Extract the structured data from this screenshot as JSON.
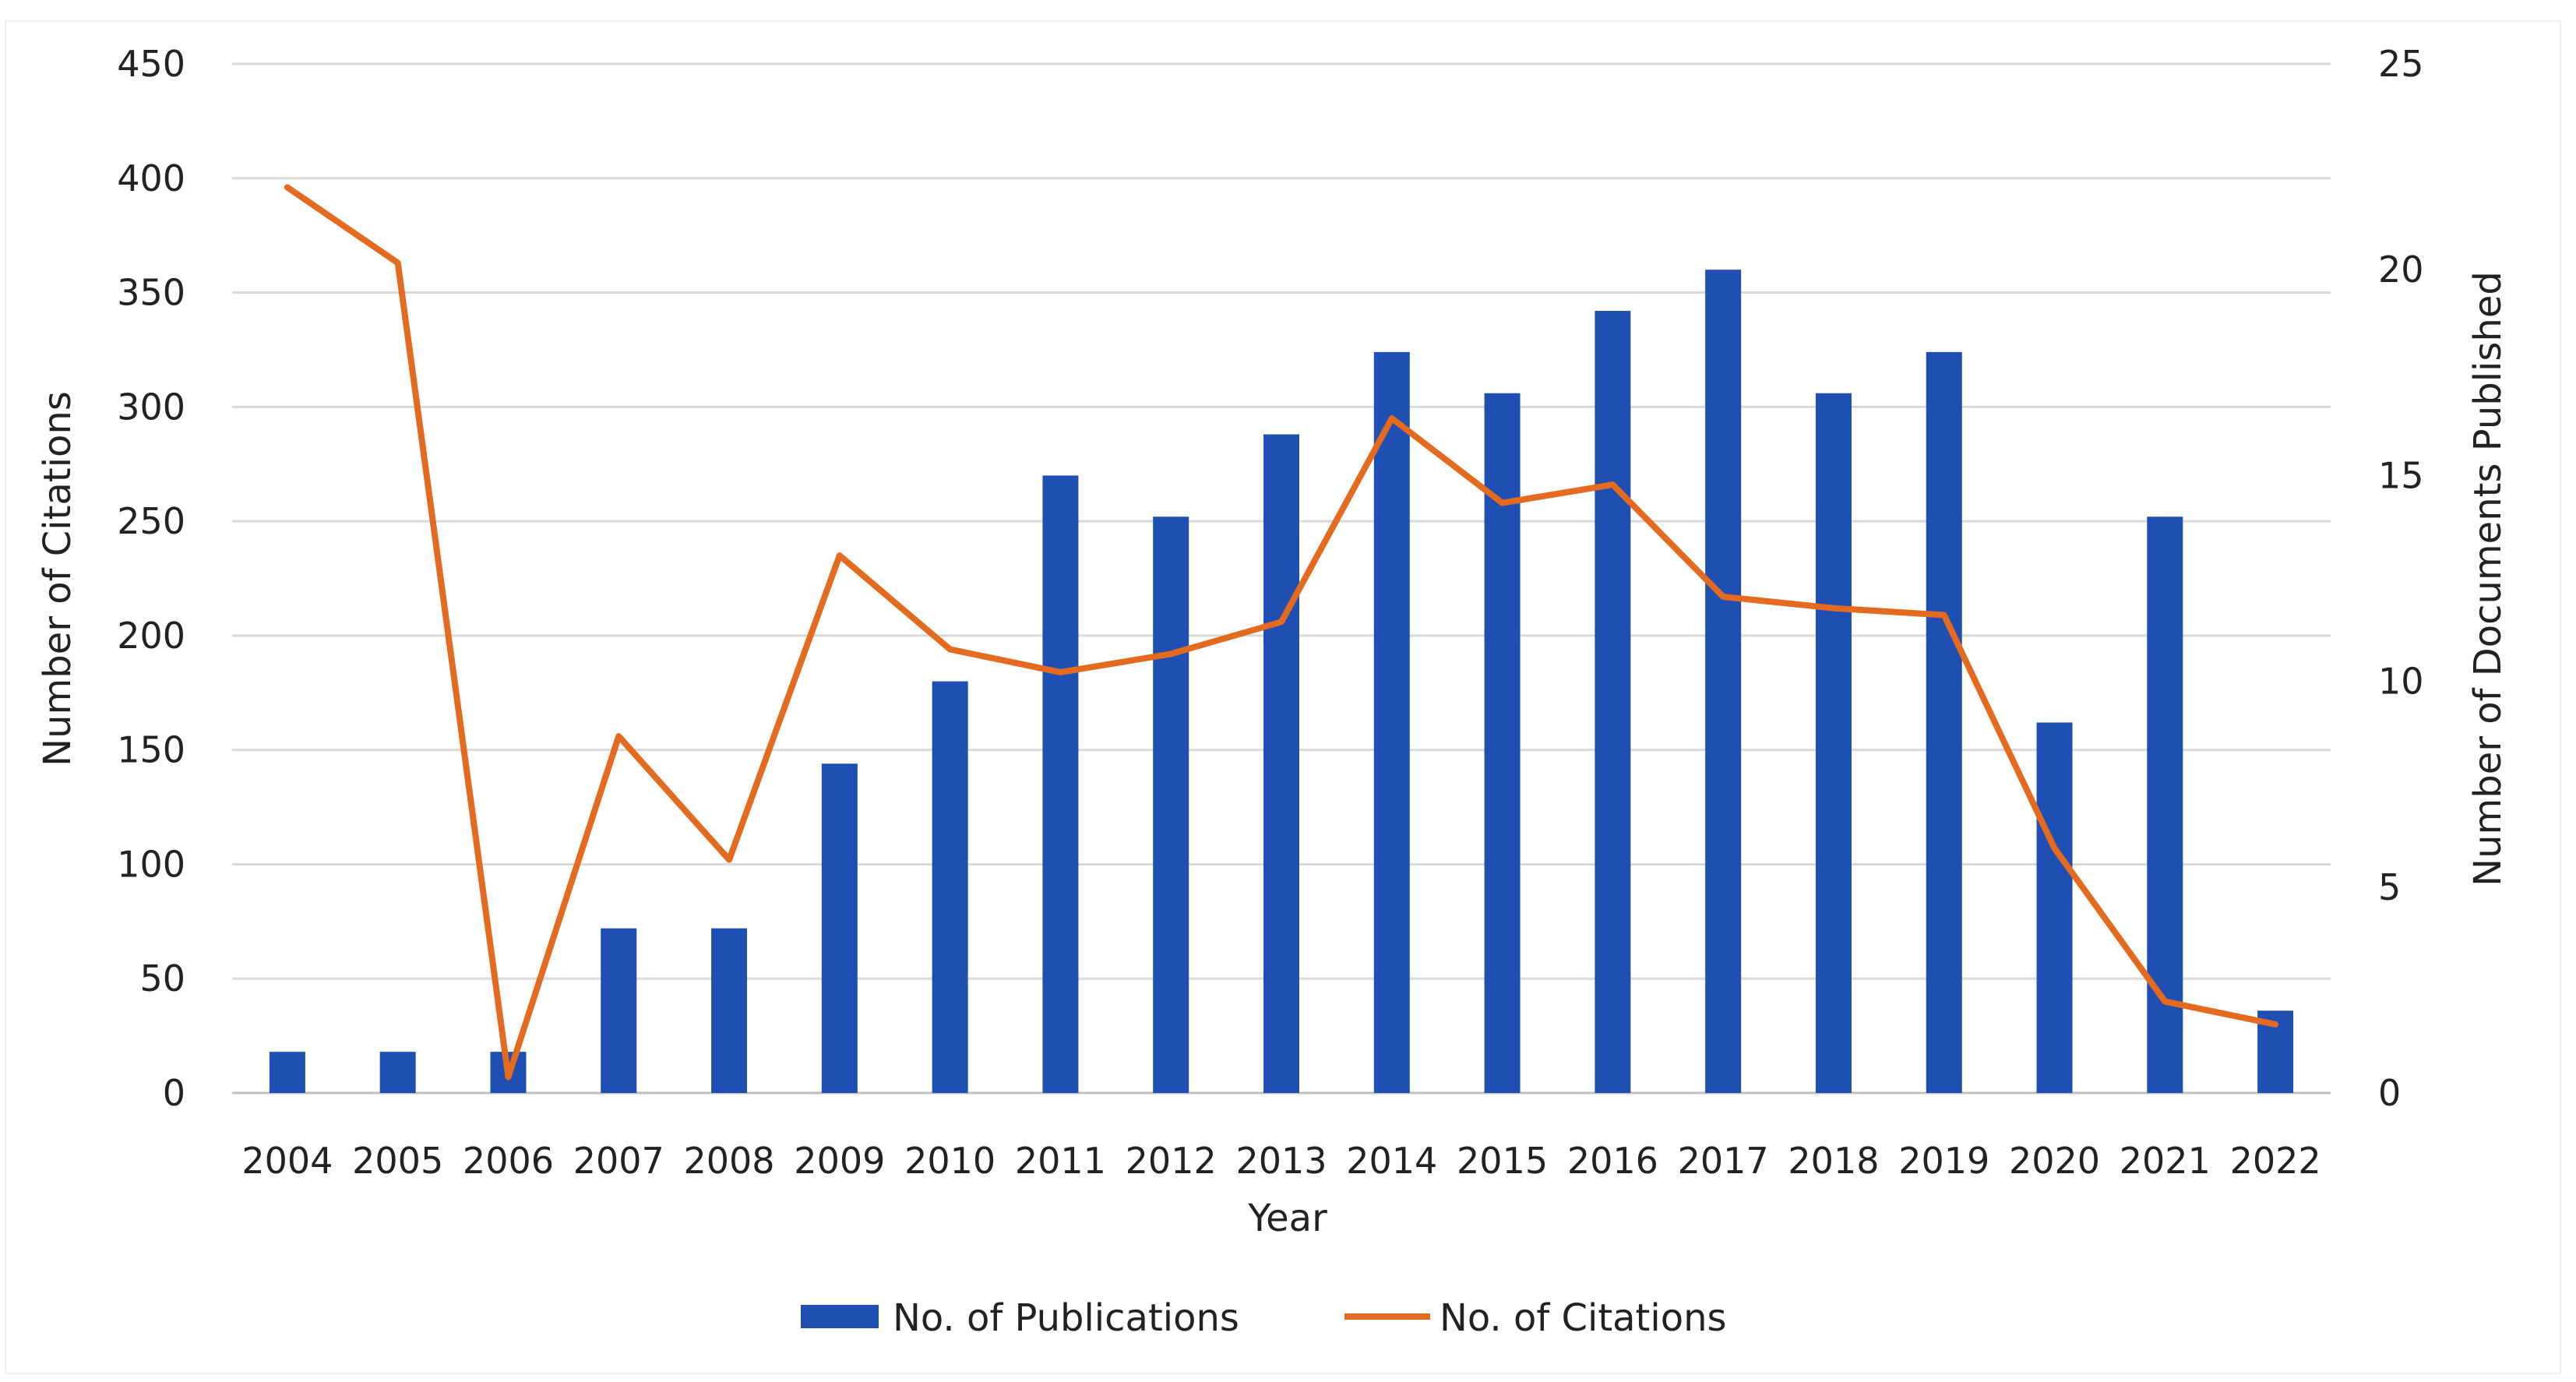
{
  "chart_data": {
    "type": "bar",
    "title": "",
    "xlabel": "Year",
    "ylabel": "Number of Citations",
    "y2label": "Number of Documents Published",
    "categories": [
      "2004",
      "2005",
      "2006",
      "2007",
      "2008",
      "2009",
      "2010",
      "2011",
      "2012",
      "2013",
      "2014",
      "2015",
      "2016",
      "2017",
      "2018",
      "2019",
      "2020",
      "2021",
      "2022"
    ],
    "ylim": [
      0,
      450
    ],
    "yticks": [
      "0",
      "50",
      "100",
      "150",
      "200",
      "250",
      "300",
      "350",
      "400",
      "450"
    ],
    "y2lim": [
      0,
      25
    ],
    "y2ticks": [
      "0",
      "5",
      "10",
      "15",
      "20",
      "25"
    ],
    "grid": true,
    "legend_position": "bottom",
    "series": [
      {
        "name": "No. of Publications",
        "type": "bar",
        "axis": "right",
        "color": "#1f4fb3",
        "values": [
          1,
          1,
          1,
          4,
          4,
          8,
          10,
          15,
          14,
          16,
          18,
          17,
          19,
          20,
          17,
          18,
          9,
          14,
          2
        ]
      },
      {
        "name": "No. of Citations",
        "type": "line",
        "axis": "left",
        "color": "#e36a1e",
        "values": [
          396,
          363,
          7,
          156,
          102,
          235,
          194,
          184,
          192,
          206,
          295,
          258,
          266,
          217,
          212,
          209,
          107,
          40,
          30
        ]
      }
    ]
  }
}
